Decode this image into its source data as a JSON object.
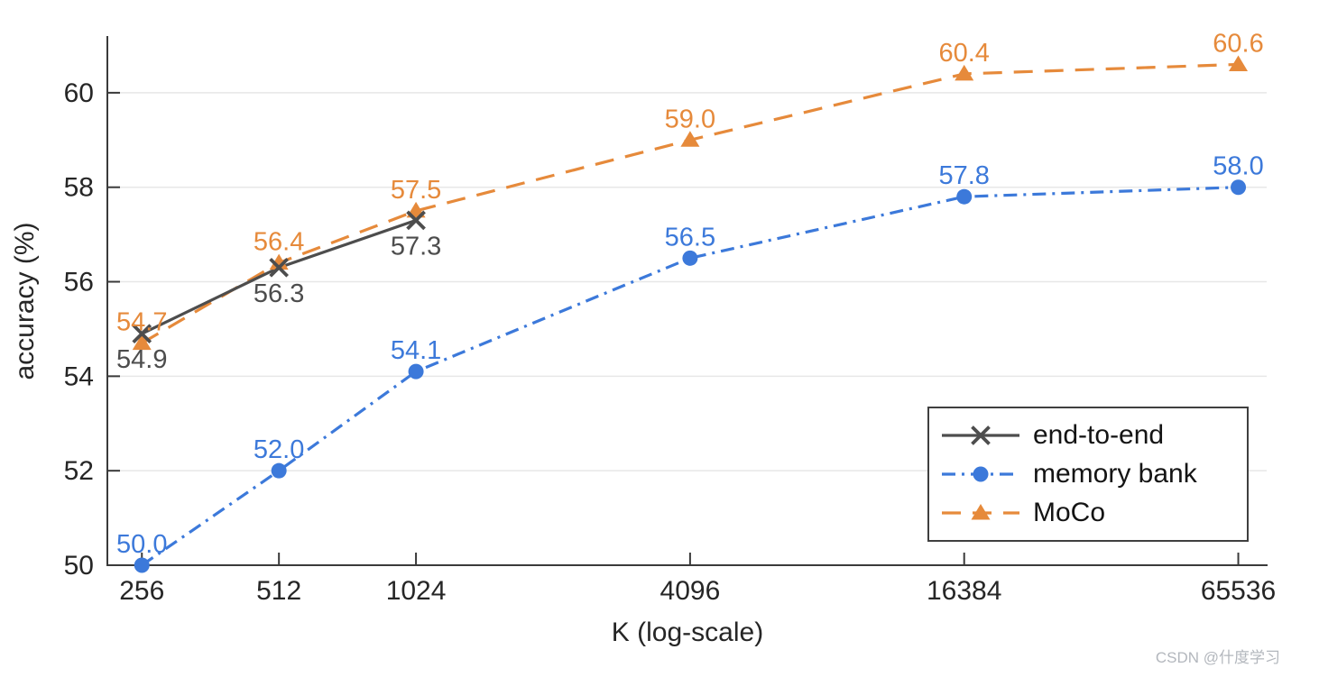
{
  "watermark": "CSDN @什度学习",
  "chart_data": {
    "type": "line",
    "title": "",
    "xlabel": "K (log-scale)",
    "ylabel": "accuracy (%)",
    "x_scale": "log2",
    "grid": "horizontal-only",
    "grid_color": "#e7e7e7",
    "axis_color": "#3a3a3a",
    "tick_label_color": "#262626",
    "xlim": [
      215,
      76000
    ],
    "ylim": [
      50,
      61.2
    ],
    "x_ticks": [
      256,
      512,
      1024,
      4096,
      16384,
      65536
    ],
    "y_ticks": [
      50,
      52,
      54,
      56,
      58,
      60
    ],
    "legend_position": "lower-right",
    "series": [
      {
        "name": "end-to-end",
        "color": "#4d4d4d",
        "line_style": "solid",
        "marker": "x",
        "label_side": "below",
        "x": [
          256,
          512,
          1024
        ],
        "values": [
          54.9,
          56.3,
          57.3
        ]
      },
      {
        "name": "memory bank",
        "color": "#3c79da",
        "line_style": "dash-dot",
        "marker": "circle",
        "label_side": "above",
        "x": [
          256,
          512,
          1024,
          4096,
          16384,
          65536
        ],
        "values": [
          50.0,
          52.0,
          54.1,
          56.5,
          57.8,
          58.0
        ]
      },
      {
        "name": "MoCo",
        "color": "#e68a3b",
        "line_style": "dashed",
        "marker": "triangle",
        "label_side": "above",
        "x": [
          256,
          512,
          1024,
          4096,
          16384,
          65536
        ],
        "values": [
          54.7,
          56.4,
          57.5,
          59.0,
          60.4,
          60.6
        ]
      }
    ]
  }
}
